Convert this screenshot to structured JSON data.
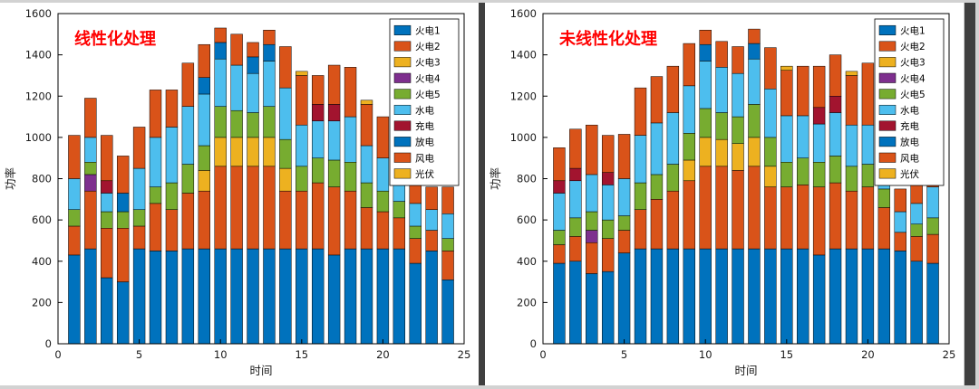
{
  "page": {
    "background": "#d2d2d2",
    "divider_color": "#3f3f3f",
    "panel_background": "#ffffff"
  },
  "chart_data": [
    {
      "type": "bar",
      "stacked": true,
      "annotation": "线性化处理",
      "annotation_color": "#FF0000",
      "xlabel": "时间",
      "ylabel": "功率",
      "xlim": [
        0,
        25
      ],
      "ylim": [
        0,
        1600
      ],
      "xticks": [
        0,
        5,
        10,
        15,
        20,
        25
      ],
      "yticks": [
        0,
        200,
        400,
        600,
        800,
        1000,
        1200,
        1400,
        1600
      ],
      "grid": false,
      "legend_position": "top-right",
      "x": [
        1,
        2,
        3,
        4,
        5,
        6,
        7,
        8,
        9,
        10,
        11,
        12,
        13,
        14,
        15,
        16,
        17,
        18,
        19,
        20,
        21,
        22,
        23,
        24
      ],
      "series": [
        {
          "name": "火电1",
          "color": "#0072BD",
          "values": [
            430,
            460,
            320,
            300,
            460,
            450,
            450,
            460,
            460,
            460,
            460,
            460,
            460,
            460,
            460,
            460,
            430,
            460,
            460,
            460,
            460,
            390,
            450,
            310
          ]
        },
        {
          "name": "火电2",
          "color": "#D95319",
          "values": [
            140,
            280,
            240,
            260,
            110,
            230,
            200,
            270,
            280,
            400,
            400,
            400,
            400,
            280,
            280,
            320,
            330,
            280,
            200,
            180,
            150,
            120,
            100,
            140
          ]
        },
        {
          "name": "火电3",
          "color": "#EDB120",
          "values": [
            0,
            0,
            0,
            0,
            0,
            0,
            0,
            0,
            100,
            140,
            140,
            140,
            140,
            110,
            0,
            0,
            0,
            0,
            0,
            0,
            0,
            0,
            0,
            0
          ]
        },
        {
          "name": "火电4",
          "color": "#7E2F8E",
          "values": [
            0,
            80,
            0,
            0,
            0,
            0,
            0,
            0,
            0,
            0,
            0,
            0,
            0,
            0,
            0,
            0,
            0,
            0,
            0,
            0,
            0,
            0,
            0,
            0
          ]
        },
        {
          "name": "火电5",
          "color": "#77AC30",
          "values": [
            80,
            60,
            80,
            80,
            80,
            80,
            130,
            140,
            120,
            150,
            130,
            120,
            150,
            140,
            120,
            120,
            130,
            140,
            120,
            100,
            80,
            60,
            0,
            60
          ]
        },
        {
          "name": "水电",
          "color": "#4DBEEE",
          "values": [
            150,
            120,
            90,
            0,
            200,
            240,
            270,
            280,
            250,
            230,
            220,
            190,
            220,
            250,
            200,
            180,
            190,
            220,
            180,
            160,
            140,
            110,
            100,
            120
          ]
        },
        {
          "name": "充电",
          "color": "#A2142F",
          "values": [
            0,
            0,
            60,
            0,
            0,
            0,
            0,
            0,
            0,
            0,
            0,
            0,
            0,
            0,
            0,
            80,
            80,
            0,
            0,
            0,
            0,
            0,
            0,
            0
          ]
        },
        {
          "name": "放电",
          "color": "#0072BD",
          "values": [
            0,
            0,
            0,
            90,
            0,
            0,
            0,
            0,
            80,
            80,
            0,
            80,
            80,
            0,
            0,
            0,
            0,
            0,
            0,
            0,
            0,
            0,
            0,
            0
          ]
        },
        {
          "name": "风电",
          "color": "#D95319",
          "values": [
            210,
            190,
            220,
            180,
            200,
            230,
            180,
            210,
            160,
            70,
            150,
            70,
            70,
            200,
            240,
            140,
            190,
            240,
            200,
            200,
            170,
            120,
            110,
            130
          ]
        },
        {
          "name": "光伏",
          "color": "#EDB120",
          "values": [
            0,
            0,
            0,
            0,
            0,
            0,
            0,
            0,
            0,
            0,
            0,
            0,
            0,
            0,
            20,
            0,
            0,
            0,
            20,
            0,
            0,
            0,
            0,
            0
          ]
        }
      ]
    },
    {
      "type": "bar",
      "stacked": true,
      "annotation": "未线性化处理",
      "annotation_color": "#FF0000",
      "xlabel": "时间",
      "ylabel": "功率",
      "xlim": [
        0,
        25
      ],
      "ylim": [
        0,
        1600
      ],
      "xticks": [
        0,
        5,
        10,
        15,
        20,
        25
      ],
      "yticks": [
        0,
        200,
        400,
        600,
        800,
        1000,
        1200,
        1400,
        1600
      ],
      "grid": false,
      "legend_position": "top-right",
      "x": [
        1,
        2,
        3,
        4,
        5,
        6,
        7,
        8,
        9,
        10,
        11,
        12,
        13,
        14,
        15,
        16,
        17,
        18,
        19,
        20,
        21,
        22,
        23,
        24
      ],
      "series": [
        {
          "name": "火电1",
          "color": "#0072BD",
          "values": [
            390,
            400,
            340,
            350,
            440,
            460,
            460,
            460,
            460,
            460,
            460,
            460,
            460,
            460,
            460,
            460,
            430,
            460,
            460,
            460,
            460,
            450,
            400,
            390
          ]
        },
        {
          "name": "火电2",
          "color": "#D95319",
          "values": [
            90,
            120,
            150,
            160,
            110,
            190,
            240,
            280,
            330,
            400,
            400,
            380,
            400,
            300,
            300,
            310,
            330,
            320,
            280,
            300,
            200,
            90,
            120,
            140
          ]
        },
        {
          "name": "火电3",
          "color": "#EDB120",
          "values": [
            0,
            0,
            0,
            0,
            0,
            0,
            0,
            0,
            100,
            140,
            130,
            130,
            140,
            100,
            0,
            0,
            0,
            0,
            0,
            0,
            0,
            0,
            0,
            0
          ]
        },
        {
          "name": "火电4",
          "color": "#7E2F8E",
          "values": [
            0,
            0,
            60,
            0,
            0,
            0,
            0,
            0,
            0,
            0,
            0,
            0,
            0,
            0,
            0,
            0,
            0,
            0,
            0,
            0,
            0,
            0,
            0,
            0
          ]
        },
        {
          "name": "火电5",
          "color": "#77AC30",
          "values": [
            70,
            90,
            90,
            90,
            70,
            130,
            120,
            130,
            130,
            140,
            130,
            130,
            160,
            140,
            120,
            130,
            120,
            130,
            120,
            110,
            90,
            0,
            60,
            80
          ]
        },
        {
          "name": "水电",
          "color": "#4DBEEE",
          "values": [
            180,
            180,
            180,
            170,
            180,
            230,
            250,
            250,
            230,
            230,
            220,
            210,
            220,
            235,
            225,
            205,
            185,
            210,
            200,
            190,
            160,
            100,
            100,
            150
          ]
        },
        {
          "name": "充电",
          "color": "#A2142F",
          "values": [
            60,
            60,
            0,
            60,
            0,
            0,
            0,
            0,
            0,
            0,
            0,
            0,
            0,
            0,
            0,
            0,
            80,
            80,
            0,
            0,
            0,
            0,
            0,
            0
          ]
        },
        {
          "name": "放电",
          "color": "#0072BD",
          "values": [
            0,
            0,
            0,
            0,
            0,
            0,
            0,
            0,
            0,
            80,
            0,
            0,
            75,
            0,
            0,
            0,
            0,
            0,
            0,
            0,
            0,
            0,
            0,
            0
          ]
        },
        {
          "name": "风电",
          "color": "#D95319",
          "values": [
            160,
            190,
            240,
            180,
            215,
            230,
            225,
            225,
            205,
            70,
            125,
            130,
            70,
            200,
            220,
            240,
            200,
            200,
            240,
            300,
            90,
            110,
            120,
            190
          ]
        },
        {
          "name": "光伏",
          "color": "#EDB120",
          "values": [
            0,
            0,
            0,
            0,
            0,
            0,
            0,
            0,
            0,
            0,
            0,
            0,
            0,
            0,
            20,
            0,
            0,
            0,
            20,
            0,
            0,
            0,
            0,
            0
          ]
        }
      ]
    }
  ]
}
